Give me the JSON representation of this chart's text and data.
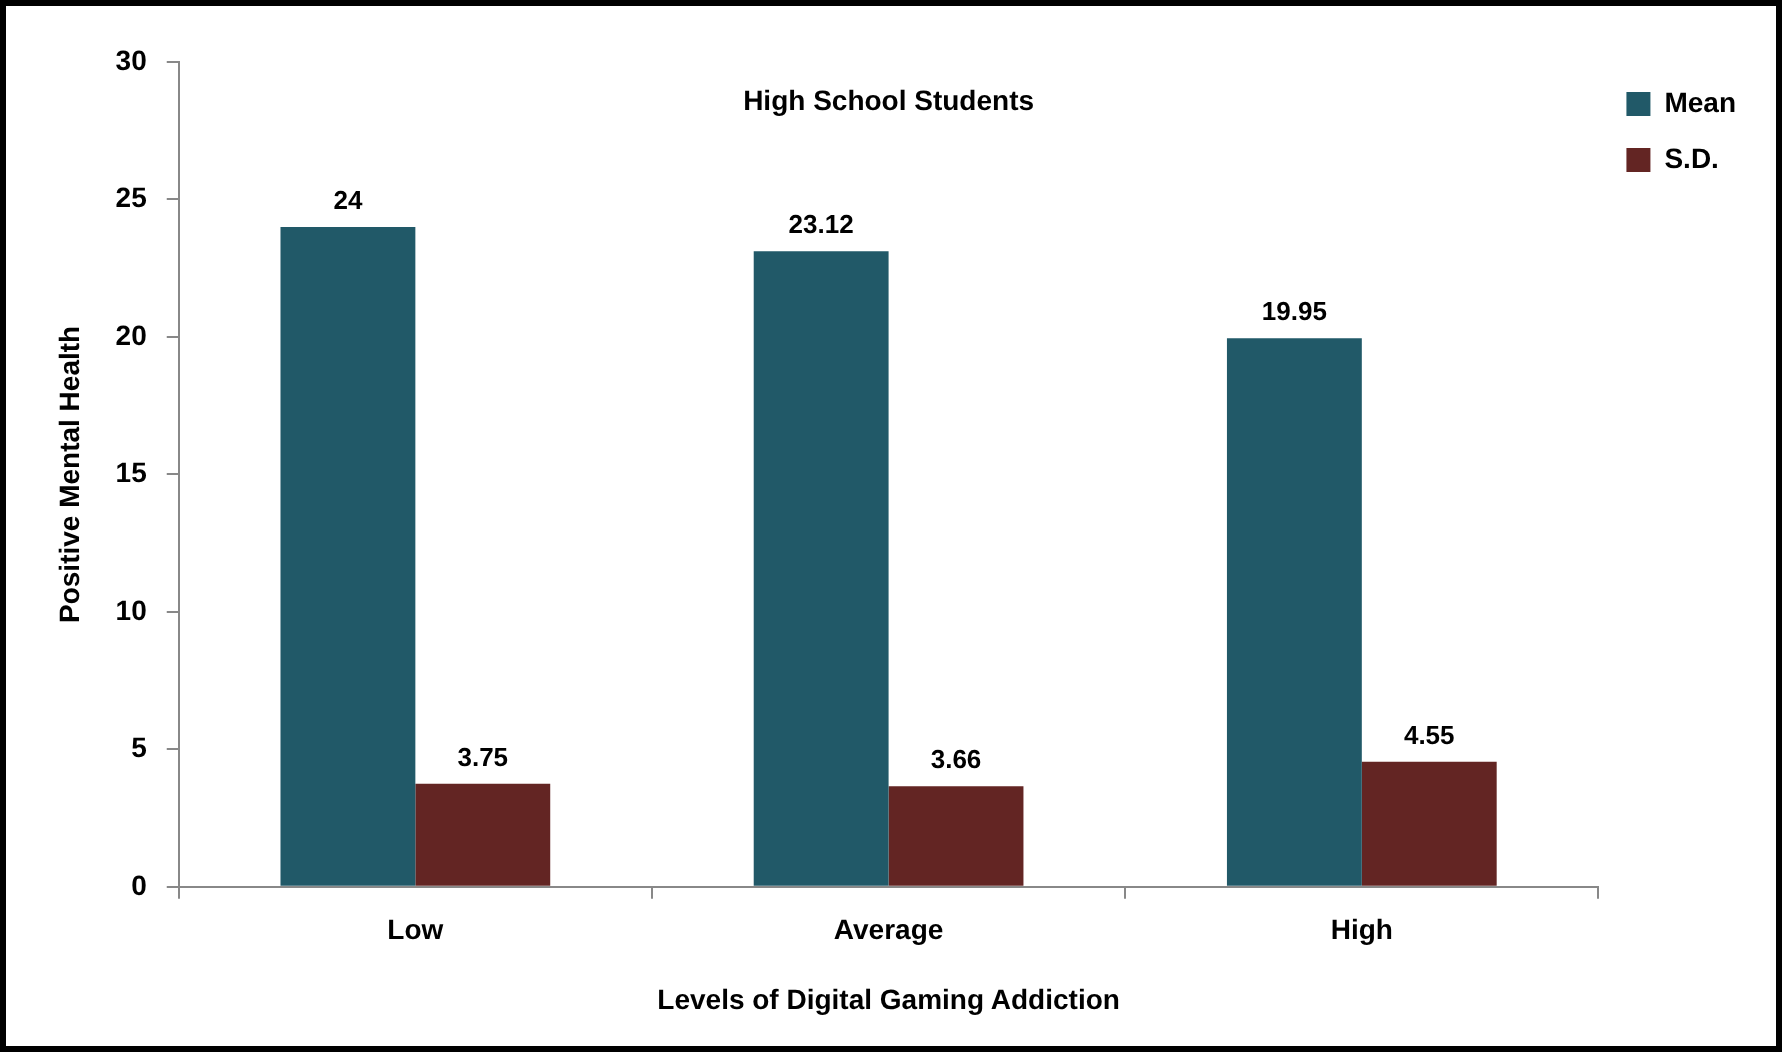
{
  "chart_data": {
    "type": "bar",
    "title": "High School Students",
    "xlabel": "Levels of Digital Gaming Addiction",
    "ylabel": "Positive Mental Health",
    "categories": [
      "Low",
      "Average",
      "High"
    ],
    "series": [
      {
        "name": "Mean",
        "color": "#215968",
        "values": [
          24,
          23.12,
          19.95
        ]
      },
      {
        "name": "S.D.",
        "color": "#632523",
        "values": [
          3.75,
          3.66,
          4.55
        ]
      }
    ],
    "ylim": [
      0,
      30
    ],
    "yticks": [
      0,
      5,
      10,
      15,
      20,
      25,
      30
    ],
    "grid": false,
    "legend": "top right",
    "data_labels": true
  }
}
